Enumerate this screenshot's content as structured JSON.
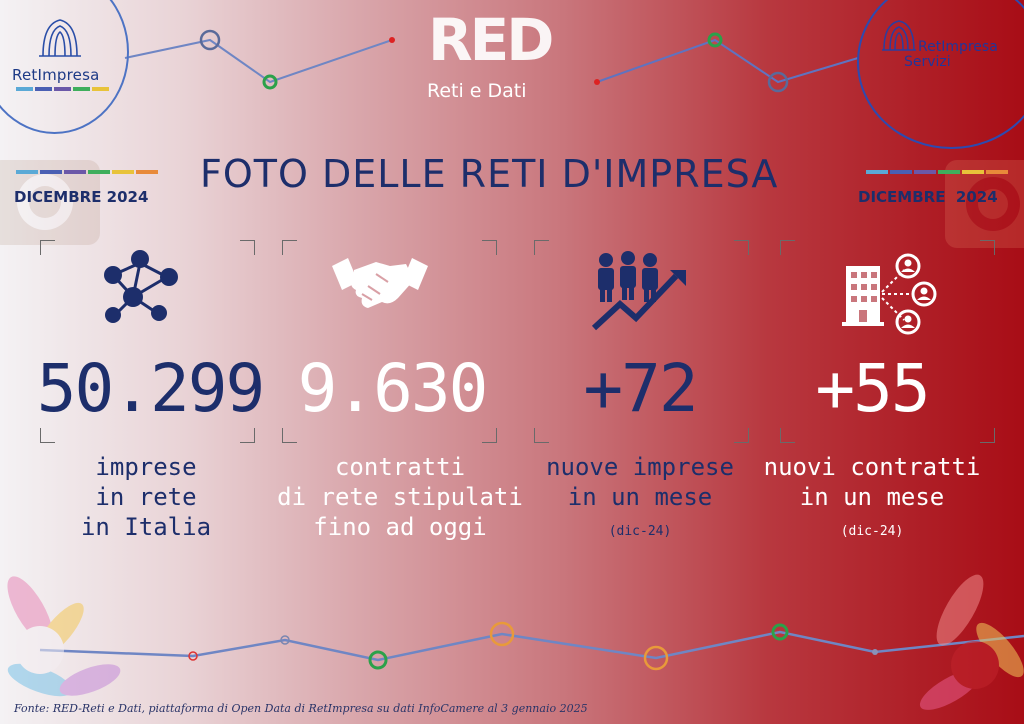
{
  "header": {
    "brand_left": "RetImpresa",
    "brand_right_line1": "RetImpresa",
    "brand_right_line2": "Servizi",
    "red_logo": "RED",
    "red_subtitle": "Reti e Dati",
    "title": "FOTO DELLE RETI D'IMPRESA",
    "date_left": "DICEMBRE 2024",
    "date_right": "DICEMBRE  2024"
  },
  "stats": [
    {
      "icon": "network-people-icon",
      "value": "50.299",
      "line1": "imprese",
      "line2": "in rete",
      "line3": "in Italia",
      "sub": ""
    },
    {
      "icon": "handshake-icon",
      "value": "9.630",
      "line1": "contratti",
      "line2": "di rete stipulati",
      "line3": "fino ad oggi",
      "sub": ""
    },
    {
      "icon": "people-growth-icon",
      "value": "+72",
      "line1": "nuove imprese",
      "line2": "in un mese",
      "line3": "",
      "sub": "(dic-24)"
    },
    {
      "icon": "building-network-icon",
      "value": "+55",
      "line1": "nuovi contratti",
      "line2": "in un mese",
      "line3": "",
      "sub": "(dic-24)"
    }
  ],
  "footer": {
    "source": "Fonte: RED-Reti e Dati, piattaforma di Open Data di RetImpresa su dati InfoCamere al 3 gennaio 2025"
  },
  "colors": {
    "navy": "#1d2e6b",
    "white": "#ffffff",
    "bar": [
      "#5aa9d6",
      "#4a5fb3",
      "#6b58a8",
      "#3fae5c",
      "#e8c33a",
      "#e88a3a"
    ]
  }
}
